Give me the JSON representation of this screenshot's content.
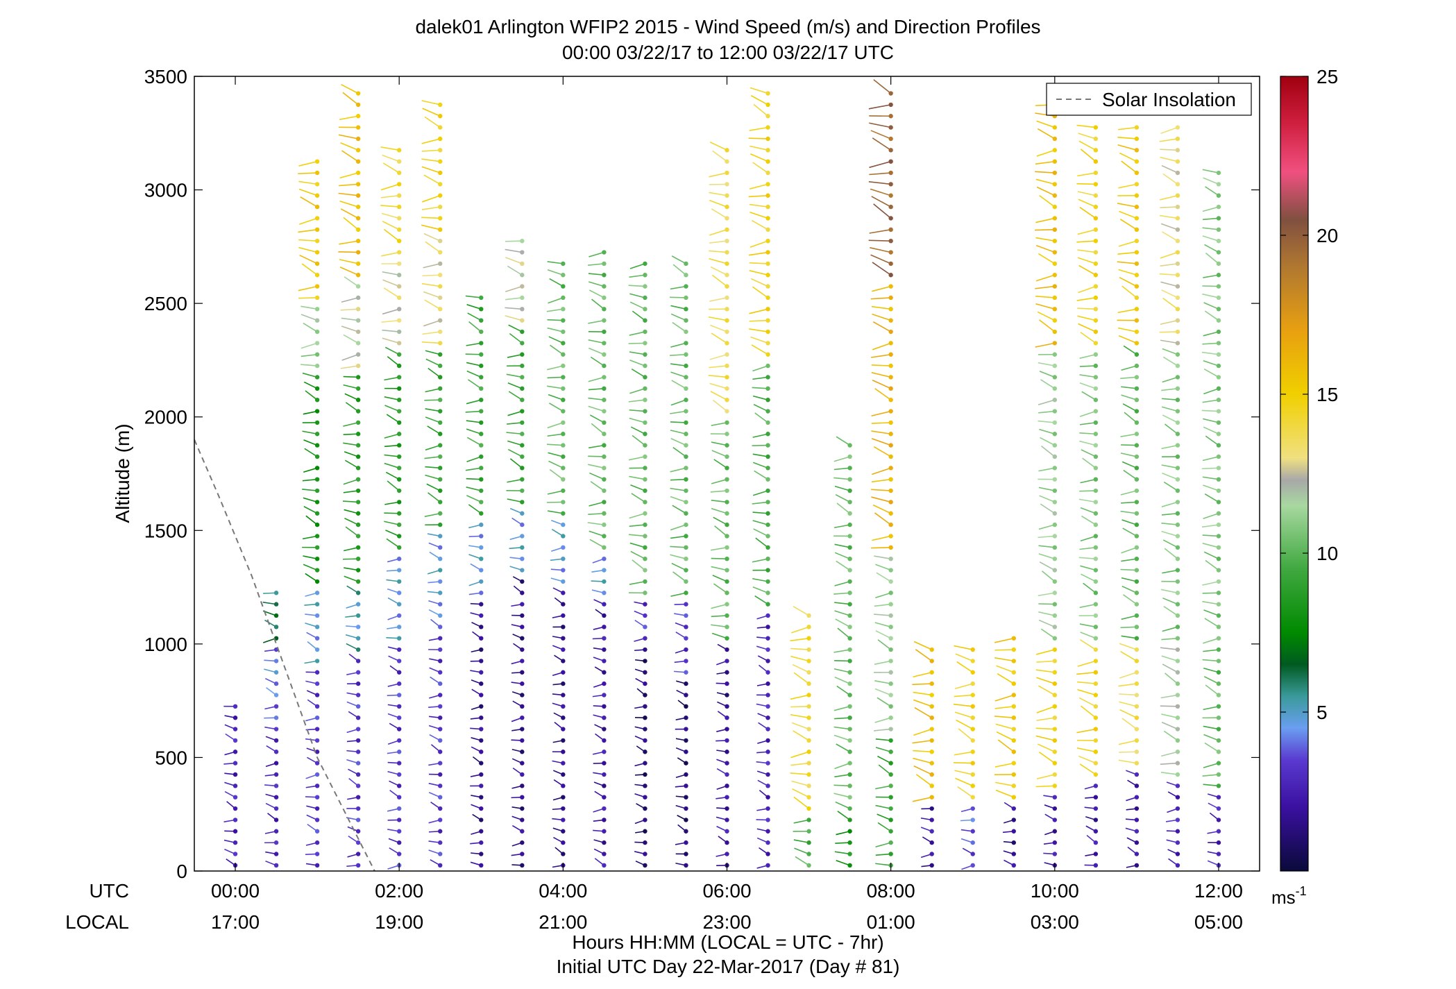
{
  "chart_data": {
    "type": "scatter",
    "title": "dalek01 Arlington WFIP2 2015 - Wind Speed (m/s) and Direction Profiles",
    "subtitle": "00:00 03/22/17 to 12:00 03/22/17  UTC",
    "ylabel": "Altitude (m)",
    "xlabel": "Hours HH:MM  (LOCAL = UTC - 7hr)",
    "xlabel2": "Initial UTC Day 22-Mar-2017 (Day # 81)",
    "x_row_labels": [
      "UTC",
      "LOCAL"
    ],
    "x_ticks_utc": [
      "00:00",
      "02:00",
      "04:00",
      "06:00",
      "08:00",
      "10:00",
      "12:00"
    ],
    "x_ticks_local": [
      "17:00",
      "19:00",
      "21:00",
      "23:00",
      "01:00",
      "03:00",
      "05:00"
    ],
    "xlim_hours": [
      -0.5,
      12.5
    ],
    "ylim": [
      0,
      3500
    ],
    "y_ticks": [
      "0",
      "500",
      "1000",
      "1500",
      "2000",
      "2500",
      "3000",
      "3500"
    ],
    "legend": {
      "entries": [
        "Solar Insolation"
      ],
      "placement": "top-right",
      "line_style": "dashed",
      "color": "#777777"
    },
    "colorbar": {
      "range": [
        0,
        25
      ],
      "ticks": [
        "5",
        "10",
        "15",
        "20",
        "25"
      ],
      "unit_label": "ms",
      "unit_exponent": "-1",
      "stops": [
        {
          "v": 0,
          "c": "#0a0a3a"
        },
        {
          "v": 2,
          "c": "#3a10a0"
        },
        {
          "v": 3.5,
          "c": "#5a3ad0"
        },
        {
          "v": 4.5,
          "c": "#6a9ef0"
        },
        {
          "v": 5.5,
          "c": "#3a9a9a"
        },
        {
          "v": 6.5,
          "c": "#005a20"
        },
        {
          "v": 7.5,
          "c": "#008a00"
        },
        {
          "v": 9.5,
          "c": "#40a840"
        },
        {
          "v": 11.5,
          "c": "#a8d8a0"
        },
        {
          "v": 12.3,
          "c": "#a8a8a8"
        },
        {
          "v": 13,
          "c": "#f0e080"
        },
        {
          "v": 15,
          "c": "#f0d000"
        },
        {
          "v": 17,
          "c": "#e8a010"
        },
        {
          "v": 19,
          "c": "#b07830"
        },
        {
          "v": 20.5,
          "c": "#805040"
        },
        {
          "v": 22,
          "c": "#f05080"
        },
        {
          "v": 23.5,
          "c": "#d02040"
        },
        {
          "v": 25,
          "c": "#a00010"
        }
      ]
    },
    "solar_insolation": {
      "x": [
        -0.5,
        -0.2,
        0.2,
        0.6,
        1.0,
        1.7
      ],
      "y": [
        1900,
        1650,
        1300,
        900,
        500,
        0
      ]
    },
    "wind_profiles": [
      {
        "t": 0.0,
        "top": 730,
        "segments": [
          [
            0,
            730,
            2.5
          ]
        ]
      },
      {
        "t": 0.5,
        "top": 1250,
        "segments": [
          [
            0,
            650,
            2.5
          ],
          [
            650,
            1000,
            4.0
          ],
          [
            1000,
            1250,
            6.0
          ]
        ]
      },
      {
        "t": 1.0,
        "top": 3150,
        "segments": [
          [
            0,
            900,
            3.0
          ],
          [
            900,
            1250,
            4.5
          ],
          [
            1250,
            2200,
            8.0
          ],
          [
            2200,
            2500,
            11.0
          ],
          [
            2500,
            3150,
            15.0
          ]
        ]
      },
      {
        "t": 1.5,
        "top": 3450,
        "segments": [
          [
            0,
            950,
            3.0
          ],
          [
            950,
            1250,
            5.0
          ],
          [
            1250,
            2200,
            8.5
          ],
          [
            2200,
            2600,
            12.0
          ],
          [
            2600,
            3450,
            15.5
          ]
        ]
      },
      {
        "t": 2.0,
        "top": 3200,
        "segments": [
          [
            0,
            1000,
            3.0
          ],
          [
            1000,
            1400,
            4.5
          ],
          [
            1400,
            2300,
            8.5
          ],
          [
            2300,
            2700,
            12.5
          ],
          [
            2700,
            3200,
            14.0
          ]
        ]
      },
      {
        "t": 2.5,
        "top": 3400,
        "segments": [
          [
            0,
            1100,
            3.0
          ],
          [
            1100,
            1500,
            4.5
          ],
          [
            1500,
            2300,
            9.0
          ],
          [
            2300,
            2800,
            13.0
          ],
          [
            2800,
            3400,
            14.5
          ]
        ]
      },
      {
        "t": 3.0,
        "top": 2550,
        "segments": [
          [
            0,
            1200,
            1.5
          ],
          [
            1200,
            1550,
            4.5
          ],
          [
            1550,
            2550,
            9.0
          ]
        ]
      },
      {
        "t": 3.5,
        "top": 2800,
        "segments": [
          [
            0,
            1300,
            1.5
          ],
          [
            1300,
            1600,
            4.5
          ],
          [
            1600,
            2400,
            9.0
          ],
          [
            2400,
            2800,
            12.0
          ]
        ]
      },
      {
        "t": 4.0,
        "top": 2700,
        "segments": [
          [
            0,
            1250,
            1.5
          ],
          [
            1250,
            1550,
            4.5
          ],
          [
            1550,
            2700,
            10.0
          ]
        ]
      },
      {
        "t": 4.5,
        "top": 2750,
        "segments": [
          [
            0,
            1200,
            2.0
          ],
          [
            1200,
            1400,
            4.5
          ],
          [
            1400,
            2750,
            10.0
          ]
        ]
      },
      {
        "t": 5.0,
        "top": 2700,
        "segments": [
          [
            0,
            1000,
            1.0
          ],
          [
            1000,
            1200,
            3.0
          ],
          [
            1200,
            2700,
            10.0
          ]
        ]
      },
      {
        "t": 5.5,
        "top": 2700,
        "segments": [
          [
            0,
            850,
            1.0
          ],
          [
            850,
            1200,
            3.0
          ],
          [
            1200,
            2700,
            10.0
          ]
        ]
      },
      {
        "t": 6.0,
        "top": 3200,
        "segments": [
          [
            0,
            650,
            2.0
          ],
          [
            650,
            1000,
            1.5
          ],
          [
            1000,
            2000,
            10.0
          ],
          [
            2000,
            3200,
            13.5
          ]
        ]
      },
      {
        "t": 6.5,
        "top": 3450,
        "segments": [
          [
            0,
            600,
            2.5
          ],
          [
            600,
            1150,
            2.5
          ],
          [
            1150,
            2250,
            9.5
          ],
          [
            2250,
            3450,
            14.5
          ]
        ]
      },
      {
        "t": 7.0,
        "top": 1150,
        "segments": [
          [
            0,
            250,
            9.5
          ],
          [
            250,
            1150,
            14.0
          ]
        ]
      },
      {
        "t": 7.5,
        "top": 1900,
        "segments": [
          [
            0,
            250,
            8.0
          ],
          [
            250,
            1900,
            10.0
          ]
        ]
      },
      {
        "t": 8.0,
        "top": 3450,
        "segments": [
          [
            0,
            600,
            9.0
          ],
          [
            600,
            1400,
            11.0
          ],
          [
            1400,
            2600,
            16.0
          ],
          [
            2600,
            3450,
            19.5
          ]
        ]
      },
      {
        "t": 8.5,
        "top": 1000,
        "segments": [
          [
            0,
            300,
            2.0
          ],
          [
            300,
            1000,
            15.5
          ]
        ]
      },
      {
        "t": 9.0,
        "top": 1000,
        "segments": [
          [
            0,
            300,
            3.5
          ],
          [
            300,
            1000,
            14.5
          ]
        ]
      },
      {
        "t": 9.5,
        "top": 1050,
        "segments": [
          [
            0,
            300,
            1.5
          ],
          [
            300,
            1050,
            15.0
          ]
        ]
      },
      {
        "t": 10.0,
        "top": 3400,
        "segments": [
          [
            0,
            350,
            2.0
          ],
          [
            350,
            1000,
            14.5
          ],
          [
            1000,
            2300,
            11.0
          ],
          [
            2300,
            3400,
            15.5
          ]
        ]
      },
      {
        "t": 10.5,
        "top": 3300,
        "segments": [
          [
            0,
            400,
            2.0
          ],
          [
            400,
            1000,
            14.5
          ],
          [
            1000,
            2300,
            10.5
          ],
          [
            2300,
            3300,
            14.5
          ]
        ]
      },
      {
        "t": 11.0,
        "top": 3300,
        "segments": [
          [
            0,
            450,
            2.0
          ],
          [
            450,
            1000,
            13.5
          ],
          [
            1000,
            2300,
            10.0
          ],
          [
            2300,
            3300,
            15.0
          ]
        ]
      },
      {
        "t": 11.5,
        "top": 3300,
        "segments": [
          [
            0,
            400,
            2.5
          ],
          [
            400,
            1000,
            11.5
          ],
          [
            1000,
            2300,
            10.5
          ],
          [
            2300,
            3300,
            13.0
          ]
        ]
      },
      {
        "t": 12.0,
        "top": 3100,
        "segments": [
          [
            0,
            350,
            2.5
          ],
          [
            350,
            1050,
            10.0
          ],
          [
            1050,
            3100,
            10.5
          ]
        ]
      }
    ]
  }
}
